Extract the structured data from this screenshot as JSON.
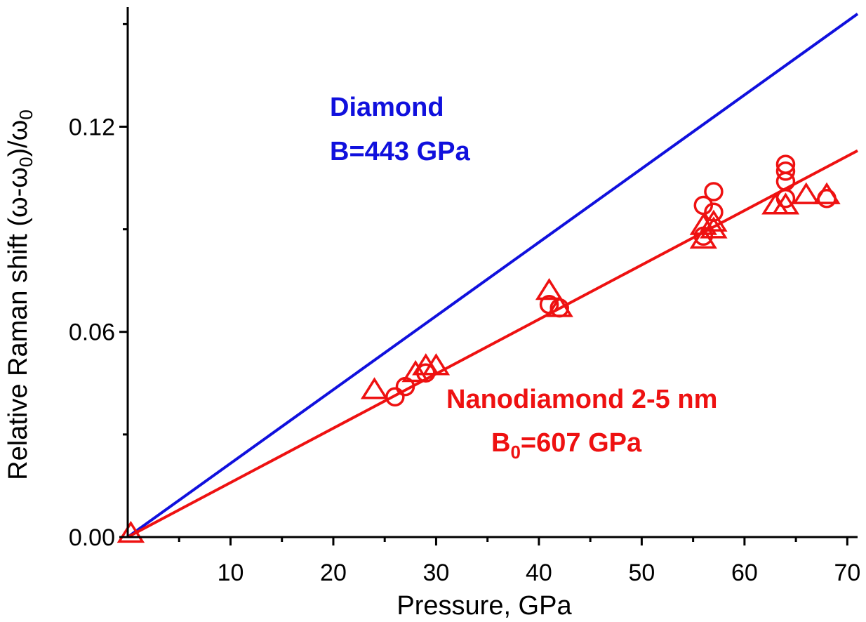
{
  "chart_data": {
    "type": "scatter",
    "xlabel": "Pressure, GPa",
    "ylabel": {
      "prefix": "Relative Raman shift (",
      "omega": "ω",
      "minus": "-",
      "omega0": "ω",
      "sub0": "0",
      "close": ")/",
      "denom": "ω",
      "denom_sub": "0"
    },
    "xlim": [
      0,
      71
    ],
    "ylim": [
      0,
      0.155
    ],
    "x_ticks": [
      10,
      20,
      30,
      40,
      50,
      60,
      70
    ],
    "y_ticks": [
      0.0,
      0.06,
      0.12
    ],
    "y_tick_labels": [
      "0.00",
      "0.06",
      "0.12"
    ],
    "grid": false,
    "colors": {
      "diamond": "#1010dd",
      "nano": "#ee1111",
      "axis": "#000000"
    },
    "lines": [
      {
        "id": "diamond",
        "color": "#1010dd",
        "x": [
          0,
          71
        ],
        "y": [
          0,
          0.153
        ]
      },
      {
        "id": "nanodiamond",
        "color": "#ee1111",
        "x": [
          0,
          71
        ],
        "y": [
          0,
          0.113
        ]
      }
    ],
    "series": [
      {
        "marker": "triangle",
        "color": "#ee1111",
        "points": [
          [
            0.3,
            0.001
          ],
          [
            24,
            0.043
          ],
          [
            28,
            0.048
          ],
          [
            29,
            0.05
          ],
          [
            30,
            0.05
          ],
          [
            41,
            0.072
          ],
          [
            42,
            0.067
          ],
          [
            56,
            0.087
          ],
          [
            56,
            0.091
          ],
          [
            57,
            0.092
          ],
          [
            57,
            0.09
          ],
          [
            63,
            0.097
          ],
          [
            64,
            0.097
          ],
          [
            66,
            0.1
          ],
          [
            68,
            0.1
          ]
        ]
      },
      {
        "marker": "circle",
        "color": "#ee1111",
        "points": [
          [
            26,
            0.041
          ],
          [
            27,
            0.044
          ],
          [
            29,
            0.048
          ],
          [
            41,
            0.068
          ],
          [
            42,
            0.067
          ],
          [
            56,
            0.088
          ],
          [
            56,
            0.097
          ],
          [
            57,
            0.095
          ],
          [
            57,
            0.101
          ],
          [
            64,
            0.109
          ],
          [
            64,
            0.107
          ],
          [
            64,
            0.104
          ],
          [
            64,
            0.099
          ],
          [
            68,
            0.099
          ]
        ]
      }
    ],
    "annotations": {
      "diamond_name": "Diamond",
      "diamond_b": "B=443 GPa",
      "nano_name": "Nanodiamond 2-5 nm",
      "nano_b_prefix": "B",
      "nano_b_sub": "0",
      "nano_b_suffix": "=607 GPa"
    }
  }
}
